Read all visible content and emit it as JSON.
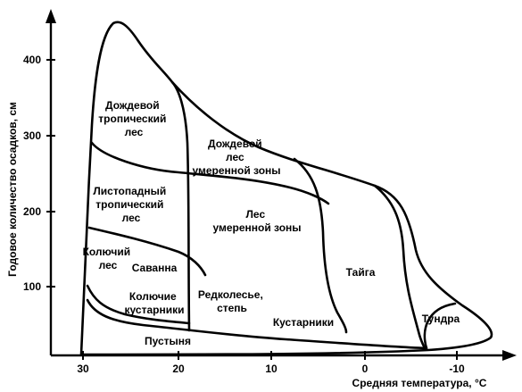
{
  "diagram": {
    "y_axis": {
      "title": "Годовое количество осадков, см",
      "ticks": [
        "100",
        "200",
        "300",
        "400"
      ]
    },
    "x_axis": {
      "title": "Средняя температура, °C",
      "ticks": [
        "30",
        "20",
        "10",
        "0",
        "-10"
      ]
    },
    "biomes": [
      {
        "key": "tropical-rainforest",
        "lines": [
          "Дождевой",
          "тропический",
          "лес"
        ]
      },
      {
        "key": "temperate-rainforest",
        "lines": [
          "Дождевой",
          "лес",
          "умеренной зоны"
        ]
      },
      {
        "key": "tropical-deciduous",
        "lines": [
          "Листопадный",
          "тропический",
          "лес"
        ]
      },
      {
        "key": "temperate-forest",
        "lines": [
          "Лес",
          "умеренной зоны"
        ]
      },
      {
        "key": "thorn-forest",
        "lines": [
          "Колючий",
          "лес"
        ]
      },
      {
        "key": "savanna",
        "lines": [
          "Саванна"
        ]
      },
      {
        "key": "taiga",
        "lines": [
          "Тайга"
        ]
      },
      {
        "key": "thorn-scrub",
        "lines": [
          "Колючие",
          "кустарники"
        ]
      },
      {
        "key": "woodland-steppe",
        "lines": [
          "Редколесье,",
          "степь"
        ]
      },
      {
        "key": "shrubland",
        "lines": [
          "Кустарники"
        ]
      },
      {
        "key": "tundra",
        "lines": [
          "Тундра"
        ]
      },
      {
        "key": "desert",
        "lines": [
          "Пустыня"
        ]
      }
    ]
  }
}
